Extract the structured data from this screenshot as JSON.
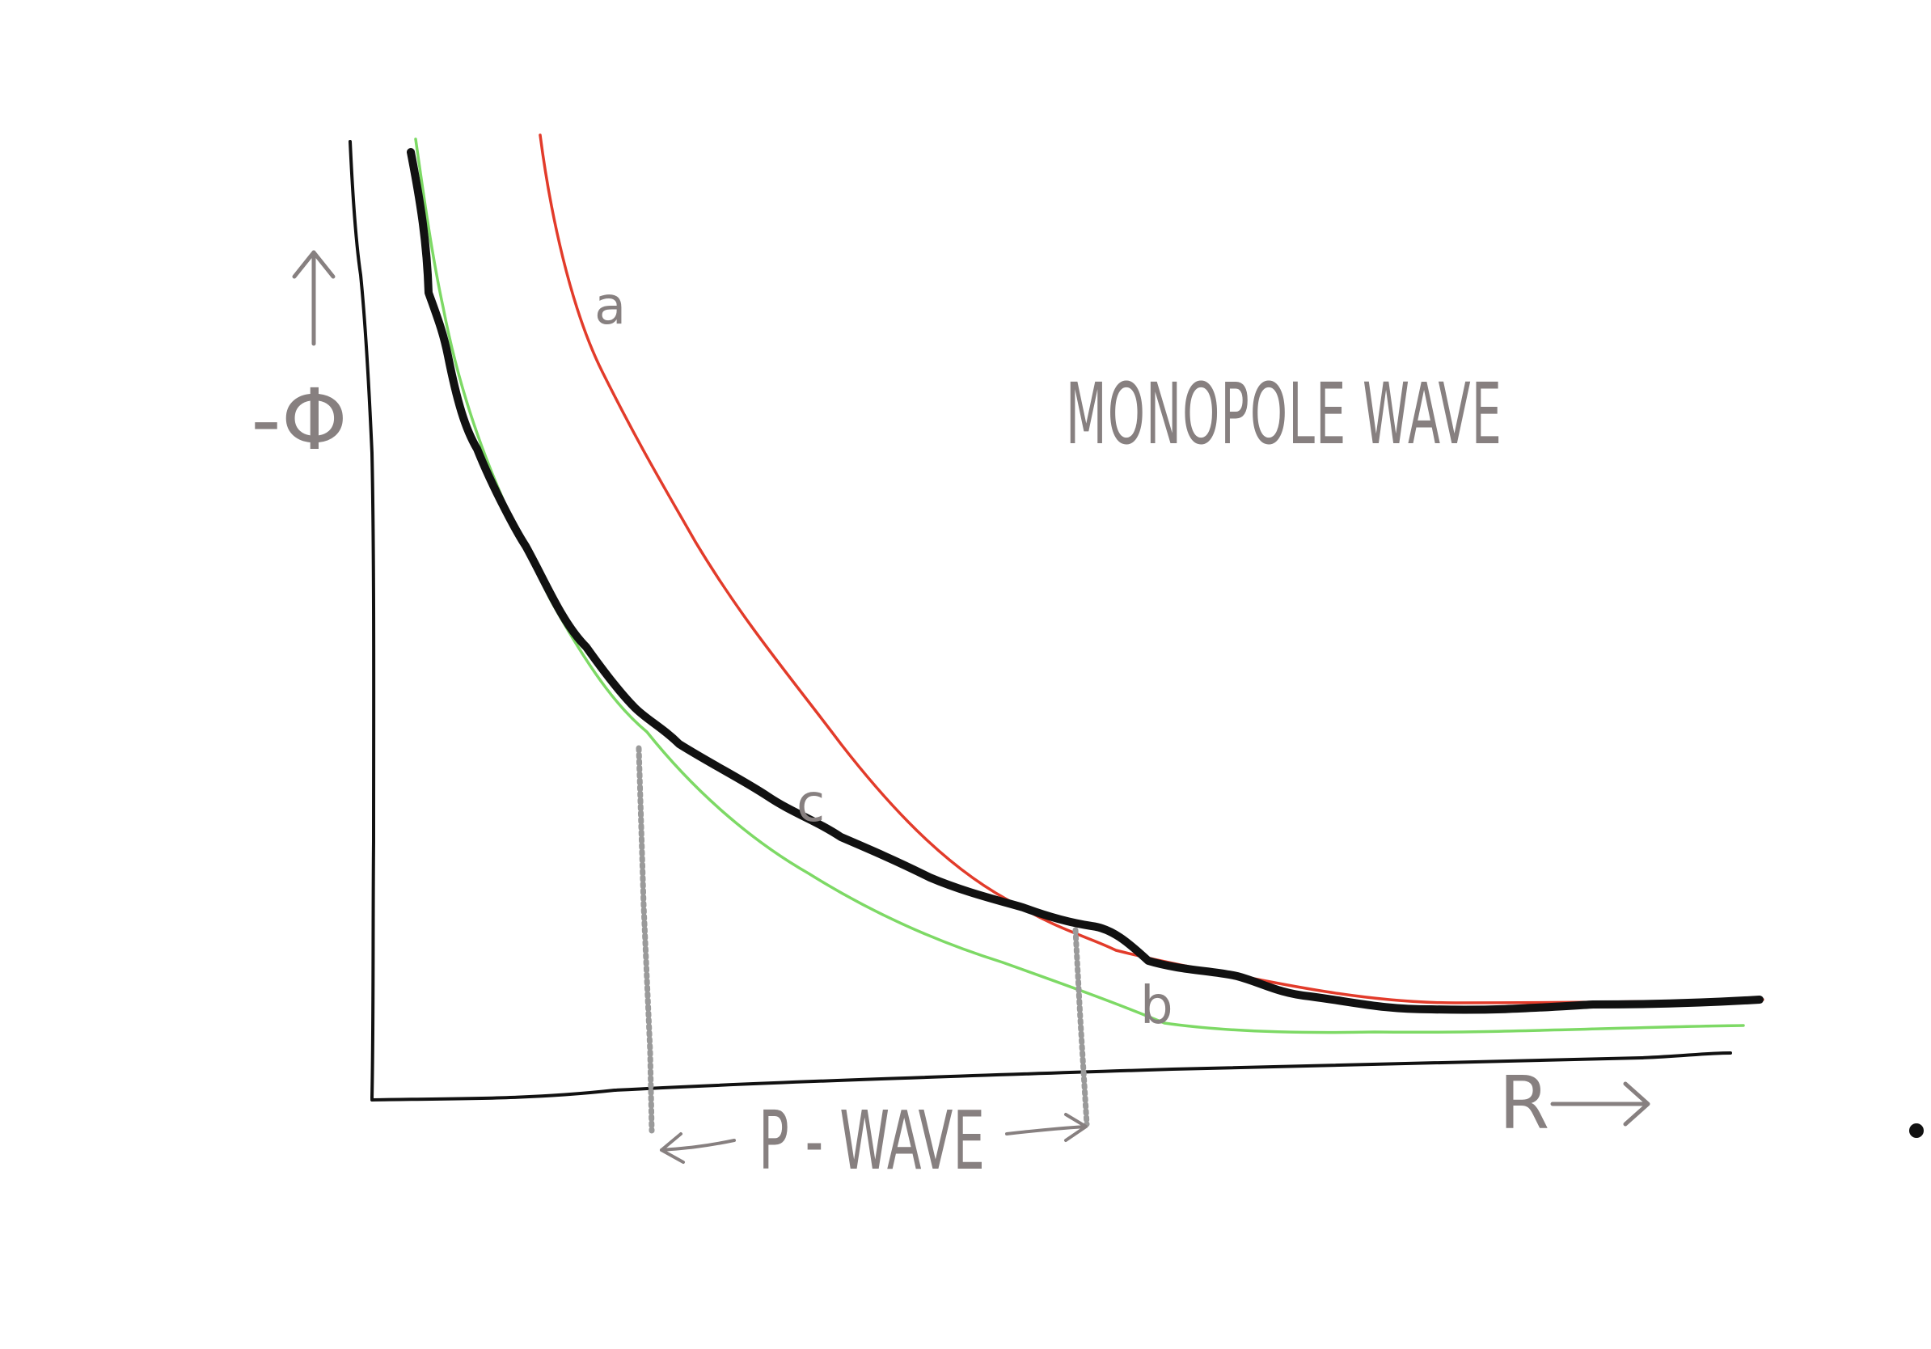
{
  "diagram": {
    "title": "MONOPOLE WAVE",
    "y_axis_label": "-Φ",
    "x_axis_label": "R",
    "region_label": "P - WAVE",
    "curves": [
      {
        "id": "a",
        "label": "a",
        "color": "#e23b2a"
      },
      {
        "id": "b",
        "label": "b",
        "color": "#7dd965"
      },
      {
        "id": "c",
        "label": "c",
        "color": "#111111"
      }
    ],
    "colors": {
      "axis": "#111111",
      "annotation": "#878080",
      "dotted_marker": "#9a9a9a",
      "background": "#ffffff"
    }
  }
}
